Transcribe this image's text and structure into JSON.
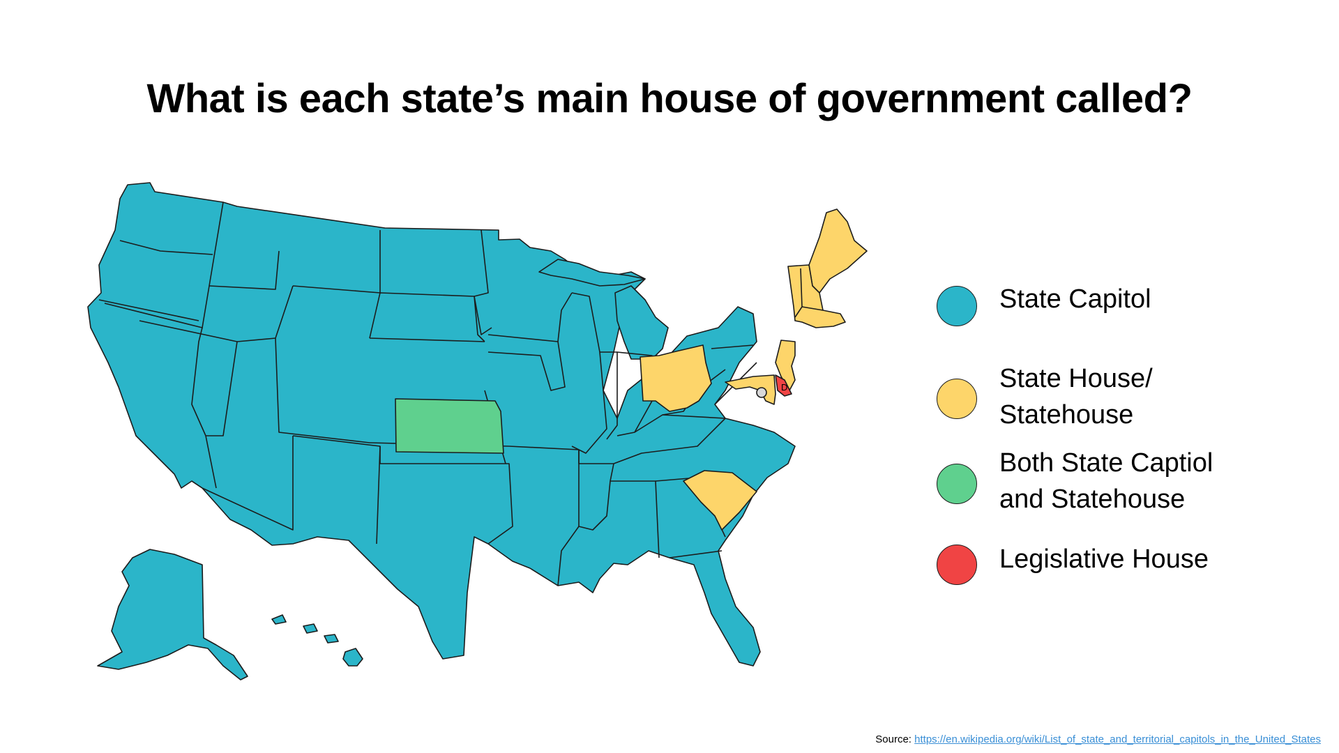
{
  "title": "What is each state’s main house of government called?",
  "colors": {
    "state_capitol": "#2bb5c9",
    "state_house": "#fdd56a",
    "both": "#5fd08e",
    "legislative_house": "#f04444",
    "outline": "#1c1c1c"
  },
  "legend": {
    "items": [
      {
        "label": "State Capitol",
        "color": "#2bb5c9"
      },
      {
        "label": "State House/ Statehouse",
        "color": "#fdd56a"
      },
      {
        "label": "Both State Captiol and Statehouse",
        "color": "#5fd08e"
      },
      {
        "label": "Legislative House",
        "color": "#f04444"
      }
    ]
  },
  "map": {
    "state_labels": {
      "delaware": "D"
    }
  },
  "source": {
    "prefix": "Source:",
    "link_text": "https://en.wikipedia.org/wiki/List_of_state_and_territorial_capitols_in_the_United_States"
  }
}
